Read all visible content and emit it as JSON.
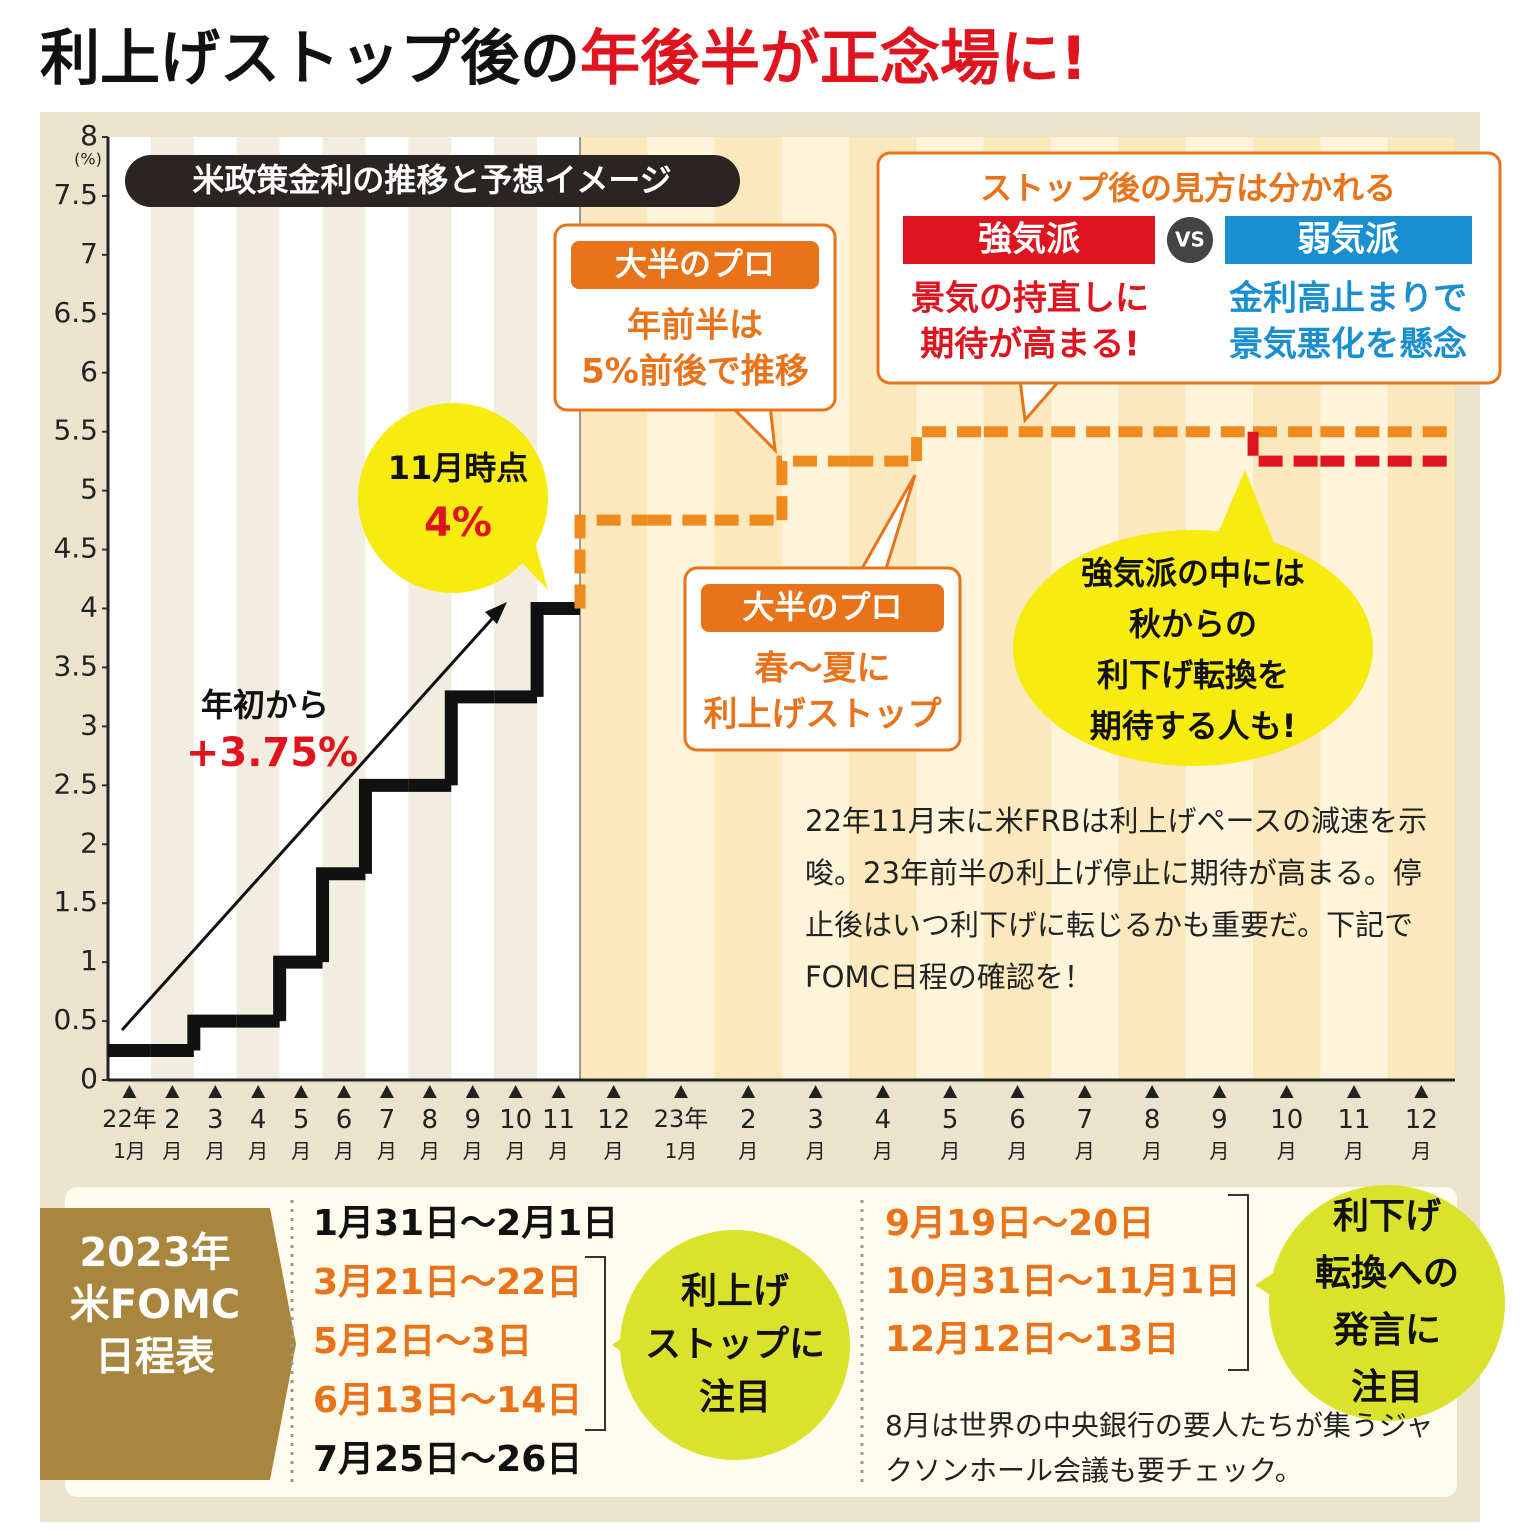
{
  "title": {
    "part1": "利上げストップ後の",
    "part2": "年後半が正念場に!"
  },
  "chart_data": {
    "type": "step",
    "subtitle": "米政策金利の推移と予想イメージ",
    "y_unit": "(%)",
    "categories": [
      "22年1月",
      "2月",
      "3月",
      "4月",
      "5月",
      "6月",
      "7月",
      "8月",
      "9月",
      "10月",
      "11月",
      "12月",
      "23年1月",
      "2月",
      "3月",
      "4月",
      "5月",
      "6月",
      "7月",
      "8月",
      "9月",
      "10月",
      "11月",
      "12月"
    ],
    "ylim": [
      0,
      8
    ],
    "yticks": [
      0,
      0.5,
      1,
      1.5,
      2,
      2.5,
      3,
      3.5,
      4,
      4.5,
      5,
      5.5,
      6,
      6.5,
      7,
      7.5,
      8
    ],
    "series": [
      {
        "color": "#111111",
        "style": "solid",
        "values": [
          0.25,
          0.25,
          0.5,
          0.5,
          1,
          1.75,
          2.5,
          2.5,
          3.25,
          3.25,
          4,
          null,
          null,
          null,
          null,
          null,
          null,
          null,
          null,
          null,
          null,
          null,
          null,
          null
        ]
      },
      {
        "color": "#ef8a1e",
        "style": "dashed",
        "values": [
          null,
          null,
          null,
          null,
          null,
          null,
          null,
          null,
          null,
          null,
          null,
          4.75,
          4.75,
          4.75,
          5.25,
          5.25,
          5.5,
          5.5,
          5.5,
          5.5,
          5.5,
          5.5,
          5.5,
          5.5
        ]
      },
      {
        "color": "#e0141e",
        "style": "dashed",
        "values": [
          null,
          null,
          null,
          null,
          null,
          null,
          null,
          null,
          null,
          null,
          null,
          null,
          null,
          null,
          null,
          null,
          null,
          null,
          null,
          null,
          null,
          5.25,
          5.25,
          5.25
        ]
      }
    ],
    "annotations": {
      "nov_point": {
        "label": "11月時点",
        "value": "4%"
      },
      "ytd": {
        "label": "年初から",
        "value": "+3.75%"
      },
      "pro_first_half": {
        "header": "大半のプロ",
        "lines": [
          "年前半は",
          "5%前後で推移"
        ]
      },
      "pro_stop": {
        "header": "大半のプロ",
        "lines": [
          "春～夏に",
          "利上げストップ"
        ]
      },
      "views": {
        "title": "ストップ後の見方は分かれる",
        "vs": "VS",
        "bull": {
          "label": "強気派",
          "lines": [
            "景気の持直しに",
            "期待が高まる!"
          ]
        },
        "bear": {
          "label": "弱気派",
          "lines": [
            "金利高止まりで",
            "景気悪化を懸念"
          ]
        }
      },
      "bull_note": {
        "lines": [
          "強気派の中には",
          "秋からの",
          "利下げ転換を",
          "期待する人も!"
        ]
      },
      "note": "22年11月末に米FRBは利上げペースの減速を示唆。23年前半の利上げ停止に期待が高まる。停止後はいつ利下げに転じるかも重要だ。下記でFOMC日程の確認を！"
    }
  },
  "schedule": {
    "label": [
      "2023年",
      "米FOMC",
      "日程表"
    ],
    "dates_left": [
      {
        "text": "1月31日～2月1日",
        "color": "#111111"
      },
      {
        "text": "3月21日～22日",
        "color": "#e8731a"
      },
      {
        "text": "5月2日～3日",
        "color": "#e8731a"
      },
      {
        "text": "6月13日～14日",
        "color": "#e8731a"
      },
      {
        "text": "7月25日～26日",
        "color": "#111111"
      }
    ],
    "dates_right": [
      {
        "text": "9月19日～20日",
        "color": "#e8731a"
      },
      {
        "text": "10月31日～11月1日",
        "color": "#e8731a"
      },
      {
        "text": "12月12日～13日",
        "color": "#e8731a"
      }
    ],
    "circle_left": [
      "利上げ",
      "ストップに",
      "注目"
    ],
    "circle_right": [
      "利下げ",
      "転換への",
      "発言に",
      "注目"
    ],
    "note": "8月は世界の中央銀行の要人たちが集うジャクソンホール会議も要チェック。"
  }
}
